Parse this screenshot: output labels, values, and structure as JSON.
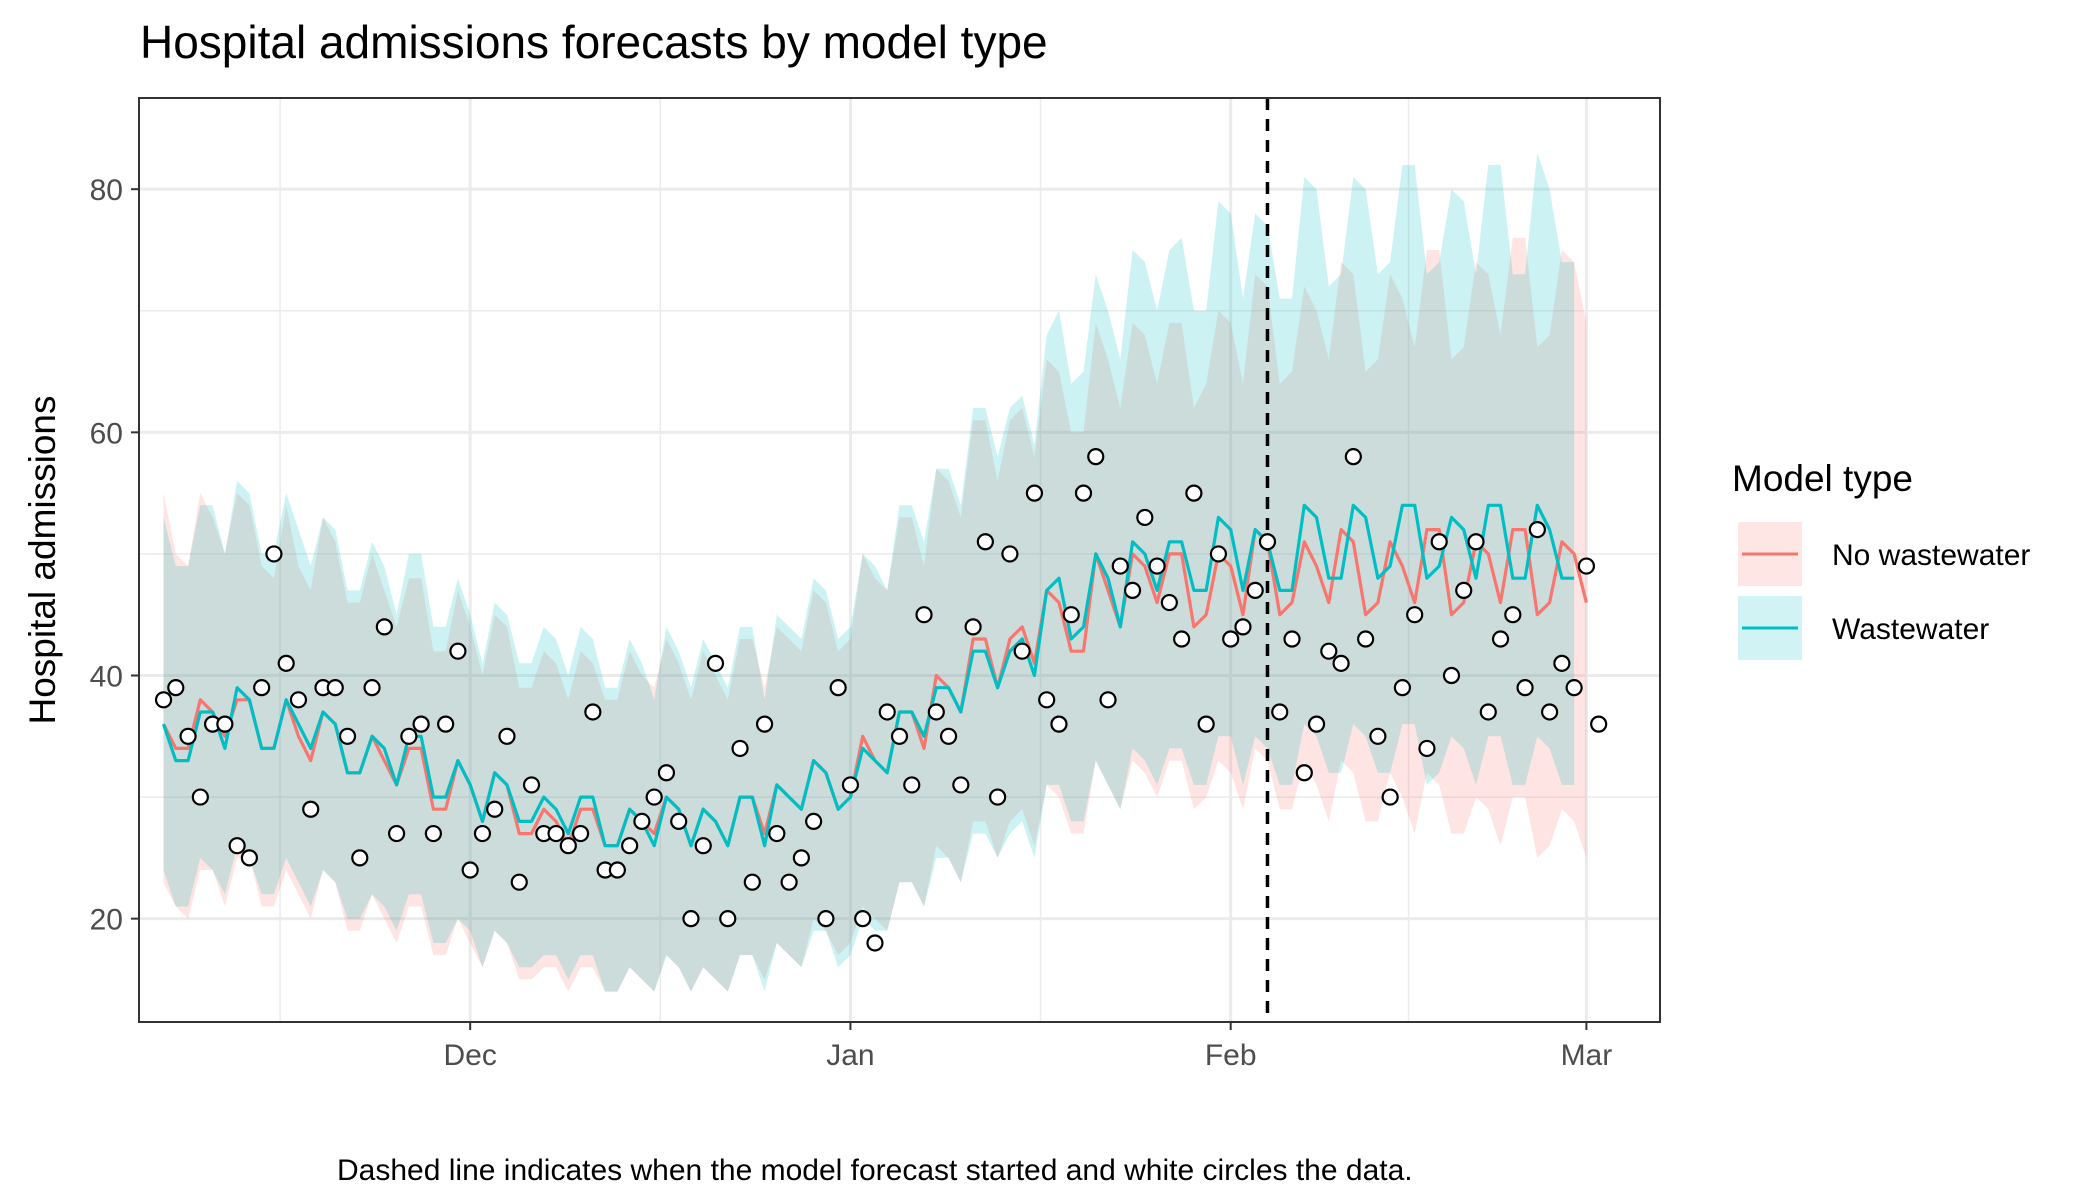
{
  "chart_data": {
    "type": "line",
    "title": "Hospital admissions forecasts by model type",
    "ylabel": "Hospital admissions",
    "xlabel": "",
    "caption": "Dashed line indicates when the model forecast started and white circles the data.",
    "legend_title": "Model type",
    "legend_position": "right",
    "grid": true,
    "x_start": "2023-11-06",
    "xlim": [
      "2023-11-04",
      "2024-03-07"
    ],
    "ylim": [
      11.5,
      87.5
    ],
    "y_ticks": [
      20,
      40,
      60,
      80
    ],
    "x_ticks": [
      {
        "label": "Dec",
        "date": "2023-12-01"
      },
      {
        "label": "Jan",
        "date": "2024-01-01"
      },
      {
        "label": "Feb",
        "date": "2024-02-01"
      },
      {
        "label": "Mar",
        "date": "2024-03-01"
      }
    ],
    "forecast_start": "2024-02-04",
    "observations": [
      38,
      39,
      35,
      30,
      36,
      36,
      26,
      25,
      39,
      50,
      41,
      38,
      29,
      39,
      39,
      35,
      25,
      39,
      44,
      27,
      35,
      36,
      27,
      36,
      42,
      24,
      27,
      29,
      35,
      23,
      31,
      27,
      27,
      26,
      27,
      37,
      24,
      24,
      26,
      28,
      30,
      32,
      28,
      20,
      26,
      41,
      20,
      34,
      23,
      36,
      27,
      23,
      25,
      28,
      20,
      39,
      31,
      20,
      18,
      37,
      35,
      31,
      45,
      37,
      35,
      31,
      44,
      51,
      30,
      50,
      42,
      55,
      38,
      36,
      45,
      55,
      58,
      38,
      49,
      47,
      53,
      49,
      46,
      43,
      55,
      36,
      50,
      43,
      44,
      47,
      51,
      37,
      43,
      32,
      36,
      42,
      41,
      58,
      43,
      35,
      30,
      39,
      45,
      34,
      51,
      40,
      47,
      51,
      37,
      43,
      45,
      39,
      52,
      37,
      41,
      39,
      49,
      36
    ],
    "series": [
      {
        "name": "No wastewater",
        "color": "#F8766D",
        "values": [
          36,
          34,
          34,
          38,
          37,
          35,
          38,
          38,
          34,
          34,
          38,
          35,
          33,
          37,
          36,
          32,
          32,
          35,
          33,
          31,
          34,
          34,
          29,
          29,
          33,
          31,
          28,
          32,
          31,
          27,
          27,
          29,
          28,
          26,
          29,
          29,
          26,
          26,
          29,
          28,
          27,
          30,
          29,
          26,
          29,
          28,
          26,
          30,
          30,
          27,
          31,
          30,
          29,
          33,
          32,
          29,
          30,
          35,
          33,
          32,
          37,
          37,
          34,
          40,
          39,
          37,
          43,
          43,
          39,
          43,
          44,
          41,
          47,
          46,
          42,
          42,
          50,
          47,
          44,
          50,
          49,
          46,
          50,
          50,
          44,
          45,
          50,
          49,
          45,
          52,
          51,
          45,
          46,
          51,
          49,
          46,
          52,
          51,
          45,
          46,
          51,
          49,
          46,
          52,
          52,
          45,
          46,
          51,
          50,
          46,
          52,
          52,
          45,
          46,
          51,
          50,
          46
        ],
        "lower": [
          23,
          21,
          20,
          24,
          24,
          21,
          25,
          25,
          21,
          21,
          24,
          22,
          20,
          24,
          23,
          19,
          19,
          22,
          20,
          18,
          21,
          21,
          17,
          17,
          20,
          18,
          16,
          19,
          18,
          15,
          15,
          16,
          16,
          14,
          16,
          16,
          14,
          14,
          16,
          15,
          14,
          17,
          16,
          14,
          16,
          15,
          14,
          17,
          17,
          15,
          18,
          17,
          16,
          20,
          19,
          17,
          18,
          21,
          20,
          19,
          23,
          23,
          21,
          26,
          25,
          23,
          28,
          28,
          25,
          28,
          29,
          26,
          31,
          30,
          27,
          27,
          33,
          31,
          29,
          33,
          32,
          30,
          33,
          33,
          29,
          30,
          33,
          32,
          29,
          34,
          33,
          29,
          29,
          33,
          31,
          28,
          33,
          32,
          28,
          28,
          32,
          30,
          27,
          32,
          31,
          27,
          27,
          30,
          29,
          26,
          30,
          30,
          25,
          26,
          29,
          28,
          25
        ],
        "upper": [
          55,
          50,
          49,
          55,
          53,
          50,
          55,
          54,
          49,
          48,
          54,
          49,
          47,
          53,
          51,
          46,
          46,
          50,
          47,
          44,
          48,
          48,
          42,
          42,
          47,
          44,
          40,
          45,
          44,
          39,
          39,
          42,
          41,
          38,
          42,
          41,
          38,
          38,
          42,
          40,
          39,
          43,
          41,
          38,
          42,
          40,
          38,
          43,
          43,
          39,
          44,
          43,
          42,
          47,
          46,
          42,
          43,
          50,
          48,
          47,
          53,
          53,
          49,
          57,
          56,
          53,
          61,
          61,
          56,
          61,
          62,
          58,
          66,
          65,
          60,
          60,
          69,
          66,
          62,
          69,
          68,
          64,
          69,
          69,
          62,
          64,
          70,
          69,
          64,
          73,
          72,
          64,
          65,
          72,
          70,
          66,
          74,
          73,
          65,
          66,
          73,
          71,
          67,
          75,
          75,
          66,
          67,
          74,
          73,
          68,
          76,
          76,
          67,
          68,
          75,
          74,
          69
        ]
      },
      {
        "name": "Wastewater",
        "color": "#00BFC4",
        "values": [
          36,
          33,
          33,
          37,
          37,
          34,
          39,
          38,
          34,
          34,
          38,
          36,
          34,
          37,
          36,
          32,
          32,
          35,
          34,
          31,
          35,
          35,
          30,
          30,
          33,
          31,
          28,
          32,
          31,
          28,
          28,
          30,
          29,
          27,
          30,
          30,
          26,
          26,
          29,
          28,
          26,
          30,
          29,
          26,
          29,
          28,
          26,
          30,
          30,
          26,
          31,
          30,
          29,
          33,
          32,
          29,
          30,
          34,
          33,
          32,
          37,
          37,
          35,
          39,
          39,
          37,
          42,
          42,
          39,
          42,
          43,
          40,
          47,
          48,
          43,
          44,
          50,
          48,
          44,
          51,
          50,
          47,
          51,
          51,
          47,
          47,
          53,
          52,
          47,
          52,
          51,
          47,
          47,
          54,
          53,
          48,
          48,
          54,
          53,
          48,
          49,
          54,
          54,
          48,
          49,
          53,
          52,
          48,
          54,
          54,
          48,
          48,
          54,
          52,
          48,
          48
        ],
        "lower": [
          24,
          21,
          21,
          25,
          24,
          22,
          26,
          25,
          22,
          22,
          25,
          23,
          21,
          24,
          23,
          20,
          20,
          22,
          21,
          19,
          22,
          22,
          18,
          18,
          20,
          19,
          16,
          19,
          18,
          16,
          16,
          17,
          17,
          15,
          17,
          17,
          14,
          14,
          16,
          15,
          14,
          17,
          16,
          14,
          16,
          15,
          14,
          17,
          17,
          14,
          18,
          17,
          16,
          19,
          19,
          16,
          17,
          20,
          19,
          19,
          23,
          23,
          21,
          25,
          25,
          23,
          27,
          27,
          25,
          27,
          28,
          25,
          31,
          31,
          28,
          28,
          33,
          31,
          29,
          34,
          33,
          31,
          34,
          34,
          31,
          31,
          35,
          35,
          31,
          35,
          34,
          31,
          31,
          36,
          35,
          32,
          32,
          36,
          35,
          32,
          32,
          36,
          36,
          31,
          32,
          35,
          34,
          31,
          35,
          35,
          31,
          31,
          35,
          34,
          31,
          31
        ],
        "upper": [
          53,
          49,
          49,
          54,
          54,
          50,
          56,
          55,
          50,
          50,
          55,
          52,
          49,
          53,
          52,
          47,
          47,
          51,
          49,
          45,
          50,
          50,
          44,
          44,
          48,
          45,
          41,
          46,
          45,
          41,
          41,
          44,
          43,
          40,
          44,
          43,
          39,
          39,
          43,
          41,
          38,
          44,
          42,
          39,
          43,
          41,
          39,
          44,
          44,
          38,
          45,
          44,
          43,
          48,
          47,
          43,
          44,
          50,
          49,
          47,
          54,
          54,
          51,
          57,
          57,
          54,
          62,
          62,
          58,
          62,
          63,
          59,
          68,
          70,
          64,
          65,
          73,
          70,
          66,
          75,
          74,
          70,
          75,
          76,
          70,
          70,
          79,
          78,
          71,
          78,
          77,
          71,
          71,
          81,
          80,
          72,
          73,
          81,
          80,
          73,
          74,
          82,
          82,
          73,
          74,
          80,
          79,
          73,
          82,
          82,
          73,
          73,
          83,
          80,
          74,
          74
        ]
      }
    ]
  }
}
